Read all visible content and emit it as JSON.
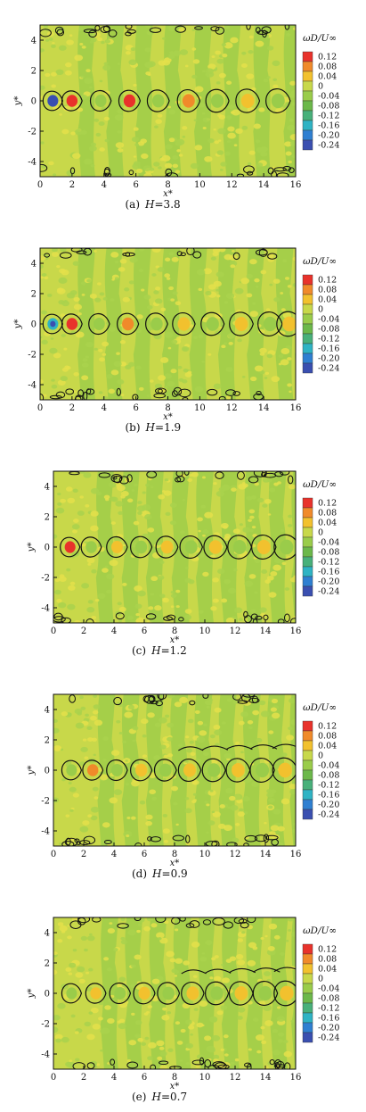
{
  "chart_data": [
    {
      "type": "heatmap",
      "caption_prefix": "(a)",
      "caption_var": "H",
      "caption_value": "=3.8",
      "xlabel": "x*",
      "ylabel": "y*",
      "colorbar_title": "ωD/U∞",
      "xlim": [
        0,
        16
      ],
      "ylim": [
        -5,
        5
      ],
      "xticks": [
        "0",
        "2",
        "4",
        "6",
        "8",
        "10",
        "12",
        "14",
        "16"
      ],
      "yticks": [
        "4",
        "2",
        "0",
        "-2",
        "-4"
      ],
      "colorbar_levels": [
        "0.12",
        "0.08",
        "0.04",
        "0",
        "-0.04",
        "-0.08",
        "-0.12",
        "-0.16",
        "-0.20",
        "-0.24"
      ],
      "colorbar_colors": [
        "#e8322b",
        "#f08a2a",
        "#f2c12e",
        "#c8d84a",
        "#9acc4a",
        "#6cb84a",
        "#48b07a",
        "#2fb3c4",
        "#2f7fd1",
        "#3a4fb0"
      ],
      "vortices": [
        {
          "x": 0.8,
          "y": 0,
          "value": -0.24
        },
        {
          "x": 2.0,
          "y": 0,
          "value": 0.12
        },
        {
          "x": 3.8,
          "y": 0,
          "value": -0.04
        },
        {
          "x": 5.6,
          "y": 0,
          "value": 0.12
        },
        {
          "x": 7.4,
          "y": 0,
          "value": -0.04
        },
        {
          "x": 9.3,
          "y": 0,
          "value": 0.08
        },
        {
          "x": 11.1,
          "y": 0,
          "value": -0.04
        },
        {
          "x": 13.0,
          "y": 0,
          "value": 0.04
        },
        {
          "x": 14.9,
          "y": 0,
          "value": -0.04
        }
      ]
    },
    {
      "type": "heatmap",
      "caption_prefix": "(b)",
      "caption_var": "H",
      "caption_value": "=1.9",
      "xlabel": "x*",
      "ylabel": "y*",
      "colorbar_title": "ωD/U∞",
      "xlim": [
        0,
        16
      ],
      "ylim": [
        -5,
        5
      ],
      "xticks": [
        "0",
        "2",
        "4",
        "6",
        "8",
        "10",
        "12",
        "14",
        "16"
      ],
      "yticks": [
        "4",
        "2",
        "0",
        "-2",
        "-4"
      ],
      "colorbar_levels": [
        "0.12",
        "0.08",
        "0.04",
        "0",
        "-0.04",
        "-0.08",
        "-0.12",
        "-0.16",
        "-0.20",
        "-0.24"
      ],
      "colorbar_colors": [
        "#e8322b",
        "#f08a2a",
        "#f2c12e",
        "#c8d84a",
        "#9acc4a",
        "#6cb84a",
        "#48b07a",
        "#2fb3c4",
        "#2f7fd1",
        "#3a4fb0"
      ],
      "vortices": [
        {
          "x": 0.8,
          "y": 0,
          "value": -0.16
        },
        {
          "x": 2.0,
          "y": 0,
          "value": 0.12
        },
        {
          "x": 3.7,
          "y": 0,
          "value": -0.04
        },
        {
          "x": 5.5,
          "y": 0,
          "value": 0.08
        },
        {
          "x": 7.3,
          "y": 0,
          "value": -0.04
        },
        {
          "x": 9.0,
          "y": 0,
          "value": 0.04
        },
        {
          "x": 10.8,
          "y": 0,
          "value": -0.04
        },
        {
          "x": 12.6,
          "y": 0,
          "value": 0.04
        },
        {
          "x": 14.4,
          "y": 0,
          "value": -0.04
        },
        {
          "x": 15.6,
          "y": 0,
          "value": 0.04
        }
      ]
    },
    {
      "type": "heatmap",
      "caption_prefix": "(c)",
      "caption_var": "H",
      "caption_value": "=1.2",
      "xlabel": "x*",
      "ylabel": "y*",
      "colorbar_title": "ωD/U∞",
      "xlim": [
        0,
        16
      ],
      "ylim": [
        -5,
        5
      ],
      "xticks": [
        "0",
        "2",
        "4",
        "6",
        "8",
        "10",
        "12",
        "14",
        "16"
      ],
      "yticks": [
        "4",
        "2",
        "0",
        "-2",
        "-4"
      ],
      "colorbar_levels": [
        "0.12",
        "0.08",
        "0.04",
        "0",
        "-0.04",
        "-0.08",
        "-0.12",
        "-0.16",
        "-0.20",
        "-0.24"
      ],
      "colorbar_colors": [
        "#e8322b",
        "#f08a2a",
        "#f2c12e",
        "#c8d84a",
        "#9acc4a",
        "#6cb84a",
        "#48b07a",
        "#2fb3c4",
        "#2f7fd1",
        "#3a4fb0"
      ],
      "vortices": [
        {
          "x": 1.1,
          "y": 0,
          "value": 0.12
        },
        {
          "x": 2.5,
          "y": 0,
          "value": -0.04
        },
        {
          "x": 4.2,
          "y": 0,
          "value": 0.04
        },
        {
          "x": 5.8,
          "y": 0,
          "value": -0.04
        },
        {
          "x": 7.5,
          "y": 0,
          "value": 0.04
        },
        {
          "x": 9.1,
          "y": 0,
          "value": -0.04
        },
        {
          "x": 10.7,
          "y": 0,
          "value": 0.04
        },
        {
          "x": 12.3,
          "y": 0,
          "value": -0.04
        },
        {
          "x": 13.9,
          "y": 0,
          "value": 0.04
        },
        {
          "x": 15.4,
          "y": 0,
          "value": -0.04
        }
      ]
    },
    {
      "type": "heatmap",
      "caption_prefix": "(d)",
      "caption_var": "H",
      "caption_value": "=0.9",
      "xlabel": "x*",
      "ylabel": "y*",
      "colorbar_title": "ωD/U∞",
      "xlim": [
        0,
        16
      ],
      "ylim": [
        -5,
        5
      ],
      "xticks": [
        "0",
        "2",
        "4",
        "6",
        "8",
        "10",
        "12",
        "14",
        "16"
      ],
      "yticks": [
        "4",
        "2",
        "0",
        "-2",
        "-4"
      ],
      "colorbar_levels": [
        "0.12",
        "0.08",
        "0.04",
        "0",
        "-0.04",
        "-0.08",
        "-0.12",
        "-0.16",
        "-0.20",
        "-0.24"
      ],
      "colorbar_colors": [
        "#e8322b",
        "#f08a2a",
        "#f2c12e",
        "#c8d84a",
        "#9acc4a",
        "#6cb84a",
        "#48b07a",
        "#2fb3c4",
        "#2f7fd1",
        "#3a4fb0"
      ],
      "vortices": [
        {
          "x": 1.2,
          "y": 0,
          "value": -0.04
        },
        {
          "x": 2.6,
          "y": 0,
          "value": 0.08
        },
        {
          "x": 4.2,
          "y": 0,
          "value": -0.04
        },
        {
          "x": 5.8,
          "y": 0,
          "value": 0.04
        },
        {
          "x": 7.4,
          "y": 0,
          "value": -0.04
        },
        {
          "x": 9.0,
          "y": 0,
          "value": 0.04
        },
        {
          "x": 10.6,
          "y": 0,
          "value": -0.04
        },
        {
          "x": 12.2,
          "y": 0,
          "value": 0.04
        },
        {
          "x": 13.8,
          "y": 0,
          "value": -0.04
        },
        {
          "x": 15.3,
          "y": 0,
          "value": 0.04
        }
      ]
    },
    {
      "type": "heatmap",
      "caption_prefix": "(e)",
      "caption_var": "H",
      "caption_value": "=0.7",
      "xlabel": "x*",
      "ylabel": "y*",
      "colorbar_title": "ωD/U∞",
      "xlim": [
        0,
        16
      ],
      "ylim": [
        -5,
        5
      ],
      "xticks": [
        "0",
        "2",
        "4",
        "6",
        "8",
        "10",
        "12",
        "14",
        "16"
      ],
      "yticks": [
        "4",
        "2",
        "0",
        "-2",
        "-4"
      ],
      "colorbar_levels": [
        "0.12",
        "0.08",
        "0.04",
        "0",
        "-0.04",
        "-0.08",
        "-0.12",
        "-0.16",
        "-0.20",
        "-0.24"
      ],
      "colorbar_colors": [
        "#e8322b",
        "#f08a2a",
        "#f2c12e",
        "#c8d84a",
        "#9acc4a",
        "#6cb84a",
        "#48b07a",
        "#2fb3c4",
        "#2f7fd1",
        "#3a4fb0"
      ],
      "vortices": [
        {
          "x": 1.2,
          "y": 0,
          "value": -0.04
        },
        {
          "x": 2.8,
          "y": 0,
          "value": 0.04
        },
        {
          "x": 4.4,
          "y": 0,
          "value": -0.04
        },
        {
          "x": 6.0,
          "y": 0,
          "value": 0.04
        },
        {
          "x": 7.6,
          "y": 0,
          "value": -0.04
        },
        {
          "x": 9.2,
          "y": 0,
          "value": 0.04
        },
        {
          "x": 10.8,
          "y": 0,
          "value": -0.04
        },
        {
          "x": 12.4,
          "y": 0,
          "value": 0.04
        },
        {
          "x": 14.0,
          "y": 0,
          "value": -0.04
        },
        {
          "x": 15.4,
          "y": 0,
          "value": 0.04
        }
      ]
    }
  ]
}
